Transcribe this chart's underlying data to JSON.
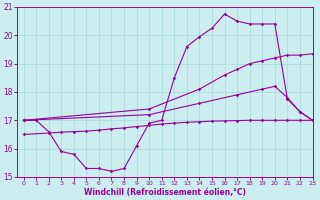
{
  "xlabel": "Windchill (Refroidissement éolien,°C)",
  "xlim": [
    -0.5,
    23
  ],
  "ylim": [
    15,
    21
  ],
  "yticks": [
    15,
    16,
    17,
    18,
    19,
    20,
    21
  ],
  "xticks": [
    0,
    1,
    2,
    3,
    4,
    5,
    6,
    7,
    8,
    9,
    10,
    11,
    12,
    13,
    14,
    15,
    16,
    17,
    18,
    19,
    20,
    21,
    22,
    23
  ],
  "bg_color": "#cceef0",
  "line_color": "#990099",
  "grid_color": "#aadddd",
  "line1_x": [
    0,
    1,
    2,
    3,
    4,
    5,
    6,
    7,
    8,
    9,
    10,
    11,
    12,
    13,
    14,
    15,
    16,
    17,
    18,
    19,
    20,
    21,
    22,
    23
  ],
  "line1_y": [
    17.0,
    17.0,
    16.6,
    15.9,
    15.8,
    15.3,
    15.3,
    15.2,
    15.3,
    16.1,
    16.9,
    17.0,
    18.5,
    19.6,
    19.95,
    20.25,
    20.75,
    20.5,
    20.4,
    20.4,
    20.4,
    17.75,
    17.3,
    17.0
  ],
  "line2_x": [
    0,
    10,
    14,
    16,
    17,
    18,
    19,
    20,
    21,
    22,
    23
  ],
  "line2_y": [
    17.0,
    17.4,
    18.1,
    18.6,
    18.8,
    19.0,
    19.1,
    19.2,
    19.3,
    19.3,
    19.35
  ],
  "line3_x": [
    0,
    10,
    14,
    17,
    19,
    20,
    21,
    22,
    23
  ],
  "line3_y": [
    17.0,
    17.2,
    17.6,
    17.9,
    18.1,
    18.2,
    17.8,
    17.3,
    17.0
  ],
  "line4_x": [
    0,
    2,
    3,
    4,
    5,
    6,
    7,
    8,
    9,
    10,
    11,
    12,
    13,
    14,
    15,
    16,
    17,
    18,
    19,
    20,
    21,
    22,
    23
  ],
  "line4_y": [
    16.5,
    16.55,
    16.58,
    16.6,
    16.62,
    16.65,
    16.7,
    16.73,
    16.78,
    16.82,
    16.87,
    16.9,
    16.93,
    16.95,
    16.97,
    16.98,
    16.99,
    17.0,
    17.0,
    17.0,
    17.0,
    17.0,
    17.0
  ]
}
